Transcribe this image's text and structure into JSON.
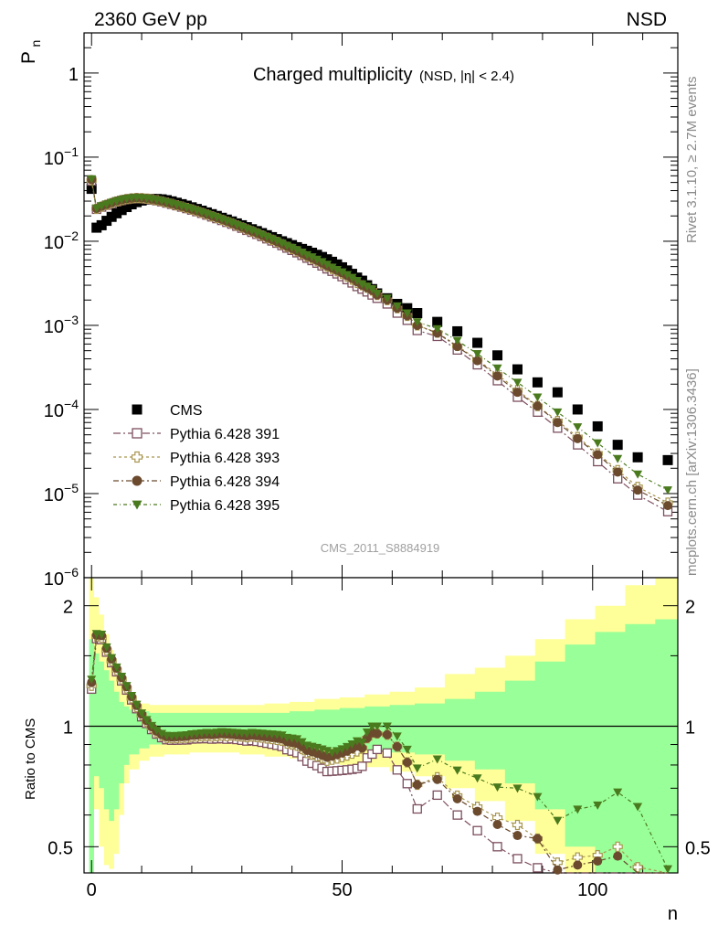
{
  "header": {
    "left": "2360 GeV pp",
    "right": "NSD"
  },
  "side_labels": {
    "rivet": "Rivet 3.1.10, ≥ 2.7M events",
    "mcplots": "mcplots.cern.ch [arXiv:1306.3436]"
  },
  "title": {
    "main": "Charged multiplicity",
    "sub": "(NSD, |η| < 2.4)"
  },
  "watermark": "CMS_2011_S8884919",
  "chart_data": [
    {
      "type": "scatter",
      "title": "Charged multiplicity (NSD, |η| < 2.4)",
      "xlabel": "n",
      "ylabel": "P_n",
      "ylabel_main": "P",
      "ylabel_sub": "n",
      "yscale": "log",
      "xlim": [
        -1.5,
        117
      ],
      "ylim": [
        1e-06,
        3
      ],
      "x_ticks": [
        0,
        50,
        100
      ],
      "y_ticks": [
        {
          "value": 1,
          "base": "1",
          "exp": ""
        },
        {
          "value": 0.1,
          "base": "10",
          "exp": "−1"
        },
        {
          "value": 0.01,
          "base": "10",
          "exp": "−2"
        },
        {
          "value": 0.001,
          "base": "10",
          "exp": "−3"
        },
        {
          "value": 0.0001,
          "base": "10",
          "exp": "−4"
        },
        {
          "value": 1e-05,
          "base": "10",
          "exp": "−5"
        },
        {
          "value": 1e-06,
          "base": "10",
          "exp": "−6"
        }
      ],
      "legend_position": "bottom-left",
      "series": [
        {
          "name": "CMS",
          "color": "#000000",
          "marker": "square-filled",
          "x": [
            0,
            1,
            2,
            3,
            4,
            5,
            6,
            7,
            8,
            9,
            10,
            11,
            12,
            13,
            14,
            15,
            16,
            17,
            18,
            19,
            20,
            21,
            22,
            23,
            24,
            25,
            26,
            27,
            28,
            29,
            30,
            31,
            32,
            33,
            34,
            35,
            36,
            37,
            38,
            39,
            40,
            41,
            42,
            43,
            44,
            45,
            46,
            47,
            48,
            49,
            50,
            51,
            52,
            53,
            54,
            55,
            56,
            57,
            59,
            61,
            63,
            65,
            69,
            73,
            77,
            81,
            85,
            89,
            93,
            97,
            101,
            105,
            109,
            115
          ],
          "values": [
            0.042,
            0.0145,
            0.0155,
            0.0175,
            0.0195,
            0.0215,
            0.0235,
            0.0255,
            0.0275,
            0.0292,
            0.0305,
            0.0313,
            0.0318,
            0.0318,
            0.0315,
            0.0308,
            0.0298,
            0.0287,
            0.0276,
            0.0265,
            0.0253,
            0.0242,
            0.0231,
            0.022,
            0.021,
            0.02,
            0.019,
            0.0181,
            0.0172,
            0.0163,
            0.0155,
            0.0147,
            0.0139,
            0.0132,
            0.0125,
            0.0118,
            0.0112,
            0.0106,
            0.01,
            0.0095,
            0.009,
            0.0085,
            0.0081,
            0.0077,
            0.0073,
            0.0069,
            0.0065,
            0.0061,
            0.0057,
            0.0053,
            0.0049,
            0.0045,
            0.0041,
            0.0037,
            0.0034,
            0.003,
            0.0027,
            0.0024,
            0.0021,
            0.0018,
            0.0016,
            0.0014,
            0.0011,
            0.00085,
            0.00062,
            0.00044,
            0.0003,
            0.00021,
            0.00016,
            0.0001,
            6.3e-05,
            3.8e-05,
            2.7e-05,
            2.5e-05
          ]
        },
        {
          "name": "Pythia 6.428 391",
          "color": "#7d4f5e",
          "marker": "square-open",
          "dash": "8,3,2,3",
          "x": [
            0,
            1,
            2,
            3,
            4,
            5,
            6,
            7,
            8,
            9,
            10,
            11,
            12,
            13,
            14,
            15,
            16,
            17,
            18,
            19,
            20,
            21,
            22,
            23,
            24,
            25,
            26,
            27,
            28,
            29,
            30,
            31,
            32,
            33,
            34,
            35,
            36,
            37,
            38,
            39,
            40,
            41,
            42,
            43,
            44,
            45,
            46,
            47,
            48,
            49,
            50,
            51,
            52,
            53,
            54,
            55,
            56,
            57,
            59,
            61,
            63,
            65,
            69,
            73,
            77,
            81,
            85,
            89,
            93,
            97,
            101,
            105,
            109,
            115
          ],
          "values": [
            0.052,
            0.024,
            0.0255,
            0.0268,
            0.0281,
            0.0294,
            0.0305,
            0.0314,
            0.032,
            0.0323,
            0.0322,
            0.0318,
            0.0312,
            0.0304,
            0.0295,
            0.0285,
            0.0275,
            0.0265,
            0.0255,
            0.0245,
            0.0235,
            0.0225,
            0.0215,
            0.0205,
            0.0195,
            0.0186,
            0.0177,
            0.0168,
            0.016,
            0.0151,
            0.0143,
            0.0135,
            0.0128,
            0.0121,
            0.0114,
            0.0107,
            0.0101,
            0.0095,
            0.0089,
            0.0083,
            0.0078,
            0.0073,
            0.0068,
            0.0063,
            0.0059,
            0.0055,
            0.0051,
            0.0047,
            0.0044,
            0.0041,
            0.0038,
            0.0035,
            0.0032,
            0.0029,
            0.0027,
            0.0025,
            0.0023,
            0.0021,
            0.0018,
            0.0014,
            0.00115,
            0.00087,
            0.00074,
            0.00051,
            0.00034,
            0.00022,
            0.00014,
            9.3e-05,
            6e-05,
            3.8e-05,
            2.4e-05,
            1.5e-05,
            9.6e-06,
            6.1e-06
          ]
        },
        {
          "name": "Pythia 6.428 393",
          "color": "#a8964f",
          "marker": "cross-open",
          "dash": "3,3",
          "x": [
            0,
            1,
            2,
            3,
            4,
            5,
            6,
            7,
            8,
            9,
            10,
            11,
            12,
            13,
            14,
            15,
            16,
            17,
            18,
            19,
            20,
            21,
            22,
            23,
            24,
            25,
            26,
            27,
            28,
            29,
            30,
            31,
            32,
            33,
            34,
            35,
            36,
            37,
            38,
            39,
            40,
            41,
            42,
            43,
            44,
            45,
            46,
            47,
            48,
            49,
            50,
            51,
            52,
            53,
            54,
            55,
            56,
            57,
            59,
            61,
            63,
            65,
            69,
            73,
            77,
            81,
            85,
            89,
            93,
            97,
            101,
            105,
            109,
            115
          ],
          "values": [
            0.053,
            0.0243,
            0.0258,
            0.0271,
            0.0284,
            0.0297,
            0.0308,
            0.0317,
            0.0323,
            0.0326,
            0.0325,
            0.0321,
            0.0315,
            0.0307,
            0.0298,
            0.0288,
            0.0278,
            0.0268,
            0.0258,
            0.0248,
            0.0238,
            0.0228,
            0.0218,
            0.0208,
            0.0198,
            0.0189,
            0.018,
            0.0171,
            0.0163,
            0.0154,
            0.0146,
            0.0138,
            0.0131,
            0.0124,
            0.0117,
            0.011,
            0.0104,
            0.0098,
            0.0092,
            0.0086,
            0.0081,
            0.0076,
            0.0071,
            0.0066,
            0.0062,
            0.0058,
            0.0054,
            0.005,
            0.0047,
            0.0044,
            0.0041,
            0.0038,
            0.0035,
            0.0032,
            0.003,
            0.0028,
            0.0026,
            0.0023,
            0.002,
            0.0016,
            0.0013,
            0.001,
            0.00082,
            0.00057,
            0.00039,
            0.00026,
            0.00017,
            0.00011,
            7.3e-05,
            4.7e-05,
            3e-05,
            1.9e-05,
            1.2e-05,
            7.8e-06
          ]
        },
        {
          "name": "Pythia 6.428 394",
          "color": "#6b4a2e",
          "marker": "circle-filled",
          "dash": "6,3,2,3",
          "x": [
            0,
            1,
            2,
            3,
            4,
            5,
            6,
            7,
            8,
            9,
            10,
            11,
            12,
            13,
            14,
            15,
            16,
            17,
            18,
            19,
            20,
            21,
            22,
            23,
            24,
            25,
            26,
            27,
            28,
            29,
            30,
            31,
            32,
            33,
            34,
            35,
            36,
            37,
            38,
            39,
            40,
            41,
            42,
            43,
            44,
            45,
            46,
            47,
            48,
            49,
            50,
            51,
            52,
            53,
            54,
            55,
            56,
            57,
            59,
            61,
            63,
            65,
            69,
            73,
            77,
            81,
            85,
            89,
            93,
            97,
            101,
            105,
            109,
            115
          ],
          "values": [
            0.054,
            0.0245,
            0.0261,
            0.0274,
            0.0287,
            0.03,
            0.0311,
            0.032,
            0.0326,
            0.0329,
            0.0327,
            0.0323,
            0.0317,
            0.0309,
            0.03,
            0.029,
            0.028,
            0.027,
            0.026,
            0.025,
            0.024,
            0.023,
            0.022,
            0.021,
            0.02,
            0.0191,
            0.0182,
            0.0173,
            0.0164,
            0.0155,
            0.0147,
            0.0139,
            0.0132,
            0.0125,
            0.0118,
            0.0111,
            0.0105,
            0.0099,
            0.0093,
            0.0087,
            0.0082,
            0.0077,
            0.0072,
            0.0067,
            0.0063,
            0.0059,
            0.0055,
            0.0051,
            0.0048,
            0.0045,
            0.0042,
            0.0039,
            0.0036,
            0.0033,
            0.003,
            0.0028,
            0.0026,
            0.0023,
            0.002,
            0.0016,
            0.0013,
            0.001,
            0.00081,
            0.00056,
            0.00038,
            0.00025,
            0.00016,
            0.00011,
            7e-05,
            4.5e-05,
            2.9e-05,
            1.8e-05,
            1.1e-05,
            7.2e-06
          ]
        },
        {
          "name": "Pythia 6.428 395",
          "color": "#4a7a1e",
          "marker": "triangle-down-filled",
          "dash": "4,3,1,3",
          "x": [
            0,
            1,
            2,
            3,
            4,
            5,
            6,
            7,
            8,
            9,
            10,
            11,
            12,
            13,
            14,
            15,
            16,
            17,
            18,
            19,
            20,
            21,
            22,
            23,
            24,
            25,
            26,
            27,
            28,
            29,
            30,
            31,
            32,
            33,
            34,
            35,
            36,
            37,
            38,
            39,
            40,
            41,
            42,
            43,
            44,
            45,
            46,
            47,
            48,
            49,
            50,
            51,
            52,
            53,
            54,
            55,
            56,
            57,
            59,
            61,
            63,
            65,
            69,
            73,
            77,
            81,
            85,
            89,
            93,
            97,
            101,
            105,
            109,
            115
          ],
          "values": [
            0.055,
            0.0247,
            0.0263,
            0.0276,
            0.0289,
            0.0302,
            0.0313,
            0.0322,
            0.0328,
            0.0331,
            0.0329,
            0.0325,
            0.0319,
            0.0311,
            0.0302,
            0.0292,
            0.0282,
            0.0272,
            0.0262,
            0.0252,
            0.0242,
            0.0232,
            0.0222,
            0.0212,
            0.0202,
            0.0193,
            0.0184,
            0.0175,
            0.0166,
            0.0157,
            0.0149,
            0.0141,
            0.0134,
            0.0127,
            0.012,
            0.0113,
            0.0107,
            0.0101,
            0.0095,
            0.0089,
            0.0084,
            0.0079,
            0.0074,
            0.0069,
            0.0065,
            0.0061,
            0.0057,
            0.0053,
            0.0049,
            0.0046,
            0.0043,
            0.004,
            0.0037,
            0.0034,
            0.0031,
            0.0029,
            0.0027,
            0.0024,
            0.0021,
            0.0017,
            0.0014,
            0.0011,
            0.00091,
            0.00066,
            0.00046,
            0.00031,
            0.00021,
            0.00014,
            9.3e-05,
            6.2e-05,
            4e-05,
            2.6e-05,
            1.7e-05,
            1.1e-05
          ]
        }
      ]
    },
    {
      "type": "scatter",
      "ylabel": "Ratio to CMS",
      "xlabel": "n",
      "yscale": "log",
      "xlim": [
        -1.5,
        117
      ],
      "ylim": [
        0.43,
        2.35
      ],
      "y_ticks": [
        0.5,
        1,
        2
      ],
      "x_ticks": [
        0,
        50,
        100
      ],
      "bands": {
        "x_edges": [
          -0.5,
          0.5,
          1.5,
          2.5,
          3.5,
          4.5,
          5.5,
          6.5,
          7.5,
          9.5,
          11.5,
          14.5,
          19.5,
          24.5,
          29.5,
          34.5,
          39.5,
          44.5,
          49.5,
          54.5,
          59.5,
          64.5,
          70.5,
          76.5,
          82.5,
          88.5,
          94.5,
          100.5,
          106.5,
          112.5,
          117
        ],
        "stat_lo": [
          0.42,
          0.75,
          0.7,
          0.62,
          0.58,
          0.62,
          0.72,
          0.8,
          0.85,
          0.88,
          0.9,
          0.91,
          0.92,
          0.92,
          0.91,
          0.9,
          0.89,
          0.88,
          0.88,
          0.87,
          0.86,
          0.85,
          0.82,
          0.78,
          0.72,
          0.62,
          0.5,
          0.4,
          0.42,
          0.42
        ],
        "stat_hi": [
          1.65,
          1.52,
          1.45,
          1.38,
          1.3,
          1.22,
          1.15,
          1.12,
          1.1,
          1.09,
          1.08,
          1.08,
          1.08,
          1.08,
          1.08,
          1.08,
          1.09,
          1.1,
          1.11,
          1.12,
          1.13,
          1.14,
          1.17,
          1.22,
          1.3,
          1.45,
          1.6,
          1.72,
          1.8,
          1.85
        ],
        "total_lo": [
          0.42,
          0.62,
          0.5,
          0.45,
          0.44,
          0.48,
          0.6,
          0.72,
          0.78,
          0.82,
          0.84,
          0.85,
          0.86,
          0.86,
          0.85,
          0.84,
          0.83,
          0.82,
          0.8,
          0.79,
          0.77,
          0.75,
          0.7,
          0.65,
          0.58,
          0.48,
          0.42,
          0.42,
          0.42,
          0.42
        ],
        "total_hi": [
          2.35,
          2.1,
          1.9,
          1.7,
          1.55,
          1.4,
          1.28,
          1.2,
          1.16,
          1.14,
          1.13,
          1.13,
          1.13,
          1.13,
          1.13,
          1.14,
          1.15,
          1.17,
          1.18,
          1.2,
          1.22,
          1.25,
          1.35,
          1.4,
          1.5,
          1.65,
          1.85,
          2.0,
          2.25,
          2.35
        ],
        "stat_color": "#99ff99",
        "total_color": "#ffff99"
      },
      "reference_line": 1
    }
  ]
}
